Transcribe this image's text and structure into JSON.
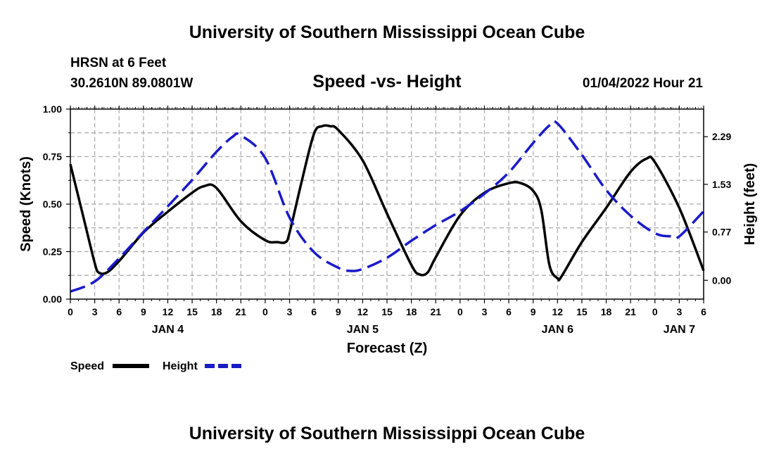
{
  "header": {
    "title": "University of Southern Mississippi Ocean Cube",
    "station": "HRSN at 6 Feet",
    "coords": "30.2610N  89.0801W",
    "plot_title": "Speed -vs- Height",
    "timestamp": "01/04/2022 Hour 21"
  },
  "footer": {
    "title": "University of Southern Mississippi Ocean Cube"
  },
  "legend": {
    "speed_label": "Speed",
    "height_label": "Height"
  },
  "colors": {
    "speed": "#000000",
    "height": "#1a1ac8",
    "grid": "#a8a8a8"
  },
  "chart_data": {
    "type": "line",
    "title": "Speed -vs- Height",
    "xlabel": "Forecast (Z)",
    "ylabel": "Speed (Knots)",
    "y2label": "Height (feet)",
    "xlim": [
      0,
      78
    ],
    "ylim": [
      0,
      1
    ],
    "y2lim": [
      -0.3,
      2.73
    ],
    "x_ticks": [
      0,
      3,
      6,
      9,
      12,
      15,
      18,
      21,
      24,
      27,
      30,
      33,
      36,
      39,
      42,
      45,
      48,
      51,
      54,
      57,
      60,
      63,
      66,
      69,
      72,
      75,
      78
    ],
    "x_tick_labels": [
      "0",
      "3",
      "6",
      "9",
      "12",
      "15",
      "18",
      "21",
      "0",
      "3",
      "6",
      "9",
      "12",
      "15",
      "18",
      "21",
      "0",
      "3",
      "6",
      "9",
      "12",
      "15",
      "18",
      "21",
      "0",
      "3",
      "6"
    ],
    "y_ticks": [
      0,
      0.25,
      0.5,
      0.75,
      1.0
    ],
    "y_tick_labels": [
      "0.00",
      "0.25",
      "0.50",
      "0.75",
      "1.00"
    ],
    "y2_ticks": [
      0.0,
      0.77,
      1.53,
      2.29
    ],
    "y2_tick_labels": [
      "0.00",
      "0.77",
      "1.53",
      "2.29"
    ],
    "day_labels": [
      {
        "x": 12,
        "label": "JAN 4"
      },
      {
        "x": 36,
        "label": "JAN 5"
      },
      {
        "x": 60,
        "label": "JAN 6"
      },
      {
        "x": 75,
        "label": "JAN 7"
      }
    ],
    "series": [
      {
        "name": "Speed",
        "axis": "left",
        "style": "solid",
        "points": [
          [
            0,
            0.71
          ],
          [
            1.5,
            0.45
          ],
          [
            3,
            0.19
          ],
          [
            3.5,
            0.14
          ],
          [
            4.5,
            0.14
          ],
          [
            6,
            0.2
          ],
          [
            9,
            0.35
          ],
          [
            12,
            0.46
          ],
          [
            15,
            0.56
          ],
          [
            16.5,
            0.595
          ],
          [
            18,
            0.585
          ],
          [
            21,
            0.41
          ],
          [
            24,
            0.31
          ],
          [
            25.5,
            0.3
          ],
          [
            26.5,
            0.3
          ],
          [
            27,
            0.35
          ],
          [
            28.5,
            0.62
          ],
          [
            30,
            0.87
          ],
          [
            31,
            0.91
          ],
          [
            32,
            0.91
          ],
          [
            33,
            0.89
          ],
          [
            36,
            0.73
          ],
          [
            39,
            0.45
          ],
          [
            42,
            0.18
          ],
          [
            43,
            0.13
          ],
          [
            44,
            0.14
          ],
          [
            45,
            0.22
          ],
          [
            48,
            0.44
          ],
          [
            51,
            0.56
          ],
          [
            54,
            0.61
          ],
          [
            55.5,
            0.61
          ],
          [
            57,
            0.57
          ],
          [
            58,
            0.47
          ],
          [
            59,
            0.18
          ],
          [
            60,
            0.11
          ],
          [
            60.5,
            0.12
          ],
          [
            63,
            0.3
          ],
          [
            66,
            0.48
          ],
          [
            69,
            0.67
          ],
          [
            71,
            0.74
          ],
          [
            72,
            0.72
          ],
          [
            75,
            0.48
          ],
          [
            78,
            0.15
          ]
        ]
      },
      {
        "name": "Height",
        "axis": "right",
        "style": "dashed",
        "points": [
          [
            0,
            -0.18
          ],
          [
            3,
            -0.02
          ],
          [
            6,
            0.35
          ],
          [
            9,
            0.77
          ],
          [
            12,
            1.18
          ],
          [
            15,
            1.6
          ],
          [
            18,
            2.05
          ],
          [
            20,
            2.29
          ],
          [
            21,
            2.31
          ],
          [
            24,
            1.95
          ],
          [
            27,
            1.0
          ],
          [
            30,
            0.45
          ],
          [
            33,
            0.2
          ],
          [
            34.5,
            0.15
          ],
          [
            36,
            0.18
          ],
          [
            39,
            0.36
          ],
          [
            42,
            0.63
          ],
          [
            45,
            0.88
          ],
          [
            48,
            1.1
          ],
          [
            51,
            1.38
          ],
          [
            54,
            1.72
          ],
          [
            57,
            2.19
          ],
          [
            59,
            2.47
          ],
          [
            60,
            2.5
          ],
          [
            63,
            2.0
          ],
          [
            66,
            1.44
          ],
          [
            69,
            1.03
          ],
          [
            72,
            0.75
          ],
          [
            74,
            0.7
          ],
          [
            75,
            0.7
          ],
          [
            78,
            1.1
          ]
        ]
      }
    ]
  }
}
